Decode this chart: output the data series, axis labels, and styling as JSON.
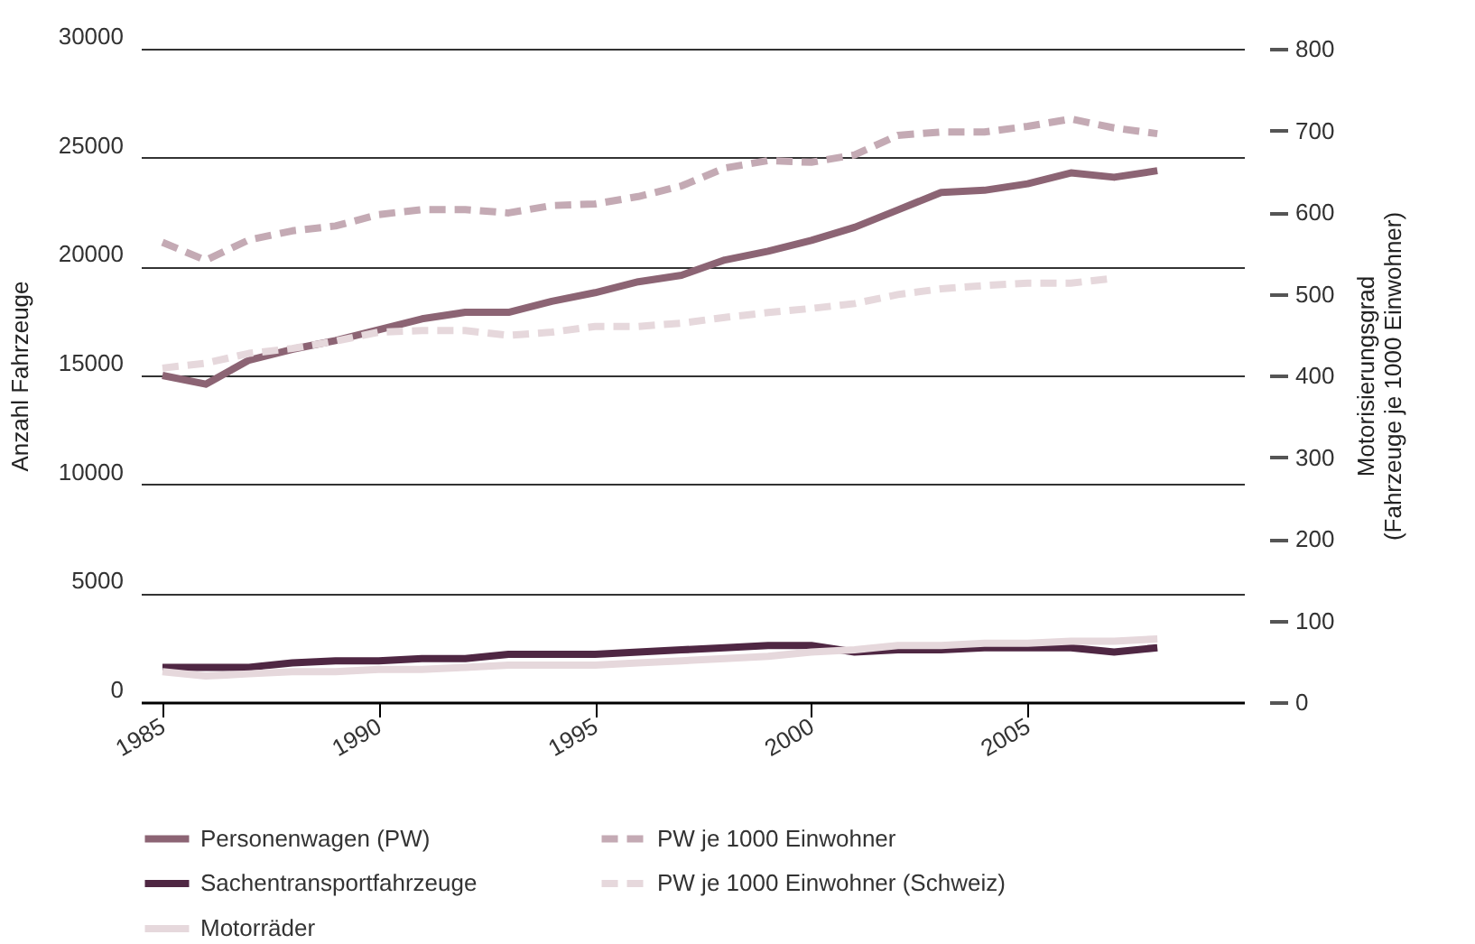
{
  "chart_data": {
    "type": "line",
    "x": [
      1985,
      1986,
      1987,
      1988,
      1989,
      1990,
      1991,
      1992,
      1993,
      1994,
      1995,
      1996,
      1997,
      1998,
      1999,
      2000,
      2001,
      2002,
      2003,
      2004,
      2005,
      2006,
      2007,
      2008
    ],
    "xlim": [
      1984.5,
      2010
    ],
    "xticks": [
      1985,
      1990,
      1995,
      2000,
      2005
    ],
    "ylabel": "Anzahl Fahrzeuge",
    "ylim": [
      0,
      30000
    ],
    "yticks": [
      {
        "value": 0,
        "label": "0"
      },
      {
        "value": 5000,
        "label": "5000"
      },
      {
        "value": 10000,
        "label": "10000"
      },
      {
        "value": 15000,
        "label": "15000"
      },
      {
        "value": 20000,
        "label": "20000"
      },
      {
        "value": 25000,
        "label": "25000"
      },
      {
        "value": 30000,
        "label": "30000"
      }
    ],
    "y2label": "Motorisierungsgrad\n(Fahrzeuge je 1000 Einwohner)",
    "y2lim": [
      0,
      800
    ],
    "y2ticks": [
      0,
      100,
      200,
      300,
      400,
      500,
      600,
      700,
      800
    ],
    "grid": "y",
    "legend": "bottom",
    "marker": "none",
    "series": [
      {
        "name": "Personenwagen (PW)",
        "color": "#8c6474",
        "line_style": "solid",
        "values": [
          15000,
          14600,
          15700,
          16200,
          16600,
          17100,
          17600,
          17900,
          17900,
          18400,
          18800,
          19300,
          19600,
          20300,
          20700,
          21200,
          21800,
          22600,
          23400,
          23500,
          23800,
          24300,
          24100,
          24400
        ]
      },
      {
        "name": "Sachentransportfahrzeuge",
        "color": "#4f2743",
        "line_style": "solid",
        "values": [
          1600,
          1600,
          1600,
          1800,
          1900,
          1900,
          2000,
          2000,
          2200,
          2200,
          2200,
          2300,
          2400,
          2500,
          2600,
          2600,
          2300,
          2400,
          2400,
          2500,
          2500,
          2500,
          2300,
          2500
        ]
      },
      {
        "name": "Motorräder",
        "color": "#e6d8dc",
        "line_style": "solid",
        "values": [
          1400,
          1200,
          1300,
          1400,
          1400,
          1500,
          1500,
          1600,
          1700,
          1700,
          1700,
          1800,
          1900,
          2000,
          2100,
          2300,
          2400,
          2600,
          2600,
          2700,
          2700,
          2800,
          2800,
          2900
        ]
      },
      {
        "name": "PW je 1000 Einwohner",
        "color": "#c4aab4",
        "line_style": "dashed",
        "axis": "y2",
        "values": [
          563,
          541,
          566,
          577,
          583,
          597,
          603,
          603,
          599,
          608,
          610,
          619,
          632,
          654,
          663,
          661,
          670,
          694,
          698,
          698,
          705,
          714,
          703,
          696
        ]
      },
      {
        "name": "PW je 1000 Einwohner (Schweiz)",
        "color": "#e6d8dc",
        "line_style": "dashed",
        "axis": "y2",
        "values": [
          409,
          415,
          427,
          433,
          442,
          453,
          455,
          455,
          449,
          453,
          460,
          460,
          464,
          471,
          477,
          482,
          488,
          499,
          506,
          510,
          513,
          513,
          519,
          null
        ]
      }
    ]
  }
}
